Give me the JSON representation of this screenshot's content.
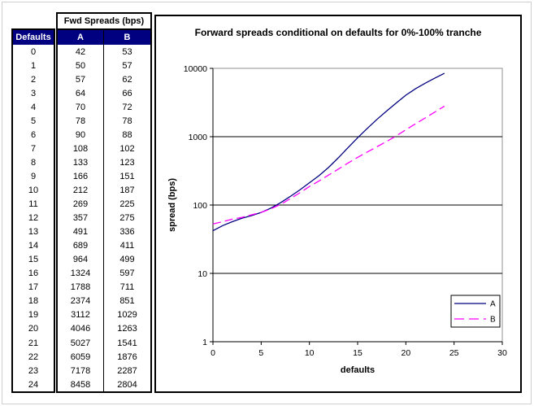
{
  "colors": {
    "series_a": "#000080",
    "series_b": "#FF00FF",
    "table_header_bg": "#000080",
    "table_header_fg": "#ffffff",
    "gridline": "#000000",
    "plot_border": "#909090",
    "window_frame": "#cfcfcf"
  },
  "table": {
    "title": "Fwd Spreads (bps)",
    "columns": [
      "Defaults",
      "A",
      "B"
    ],
    "rows": [
      [
        0,
        42,
        53
      ],
      [
        1,
        50,
        57
      ],
      [
        2,
        57,
        62
      ],
      [
        3,
        64,
        66
      ],
      [
        4,
        70,
        72
      ],
      [
        5,
        78,
        78
      ],
      [
        6,
        90,
        88
      ],
      [
        7,
        108,
        102
      ],
      [
        8,
        133,
        123
      ],
      [
        9,
        166,
        151
      ],
      [
        10,
        212,
        187
      ],
      [
        11,
        269,
        225
      ],
      [
        12,
        357,
        275
      ],
      [
        13,
        491,
        336
      ],
      [
        14,
        689,
        411
      ],
      [
        15,
        964,
        499
      ],
      [
        16,
        1324,
        597
      ],
      [
        17,
        1788,
        711
      ],
      [
        18,
        2374,
        851
      ],
      [
        19,
        3112,
        1029
      ],
      [
        20,
        4046,
        1263
      ],
      [
        21,
        5027,
        1541
      ],
      [
        22,
        6059,
        1876
      ],
      [
        23,
        7178,
        2287
      ],
      [
        24,
        8458,
        2804
      ]
    ]
  },
  "chart_data": {
    "type": "line",
    "title": "Forward spreads conditional on defaults for 0%-100% tranche",
    "xlabel": "defaults",
    "ylabel": "spread (bps)",
    "x_scale": "linear",
    "y_scale": "log",
    "xlim": [
      0,
      30
    ],
    "ylim": [
      1,
      10000
    ],
    "x_ticks": [
      0,
      5,
      10,
      15,
      20,
      25,
      30
    ],
    "y_ticks": [
      1,
      10,
      100,
      1000,
      10000
    ],
    "grid": "horizontal-decades",
    "legend_position": "inside-bottom-right",
    "x": [
      0,
      1,
      2,
      3,
      4,
      5,
      6,
      7,
      8,
      9,
      10,
      11,
      12,
      13,
      14,
      15,
      16,
      17,
      18,
      19,
      20,
      21,
      22,
      23,
      24
    ],
    "series": [
      {
        "name": "A",
        "color": "#000080",
        "line_style": "solid",
        "values": [
          42,
          50,
          57,
          64,
          70,
          78,
          90,
          108,
          133,
          166,
          212,
          269,
          357,
          491,
          689,
          964,
          1324,
          1788,
          2374,
          3112,
          4046,
          5027,
          6059,
          7178,
          8458
        ]
      },
      {
        "name": "B",
        "color": "#FF00FF",
        "line_style": "dashed",
        "values": [
          53,
          57,
          62,
          66,
          72,
          78,
          88,
          102,
          123,
          151,
          187,
          225,
          275,
          336,
          411,
          499,
          597,
          711,
          851,
          1029,
          1263,
          1541,
          1876,
          2287,
          2804
        ]
      }
    ]
  }
}
